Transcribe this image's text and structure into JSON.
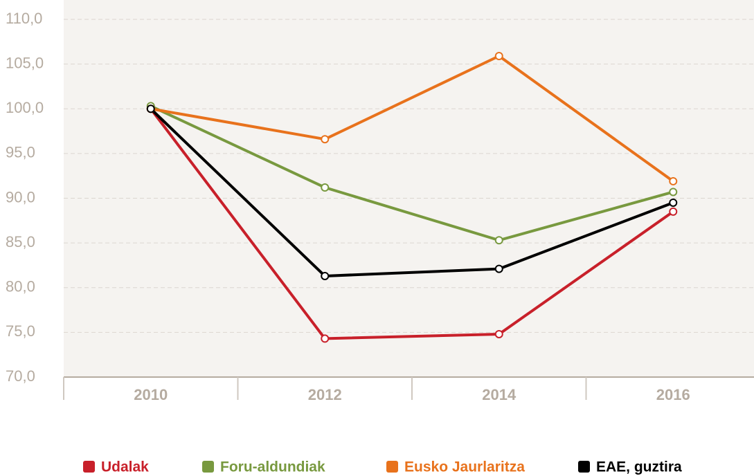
{
  "chart_data": {
    "type": "line",
    "categories": [
      "2010",
      "2012",
      "2014",
      "2016"
    ],
    "series": [
      {
        "name": "Udalak",
        "color": "#c8202a",
        "values": [
          100,
          74.3,
          74.8,
          88.5
        ]
      },
      {
        "name": "Foru-aldundiak",
        "color": "#78993f",
        "values": [
          100.3,
          91.2,
          85.3,
          90.7
        ]
      },
      {
        "name": "Eusko Jaurlaritza",
        "color": "#e8721c",
        "values": [
          100,
          96.6,
          105.9,
          91.9
        ]
      },
      {
        "name": "EAE, guztira",
        "color": "#000000",
        "values": [
          100,
          81.3,
          82.1,
          89.5
        ]
      }
    ],
    "ylim": [
      70,
      110
    ],
    "yticks": [
      {
        "value": 70,
        "label": "70,0"
      },
      {
        "value": 75,
        "label": "75,0"
      },
      {
        "value": 80,
        "label": "80,0"
      },
      {
        "value": 85,
        "label": "85,0"
      },
      {
        "value": 90,
        "label": "90,0"
      },
      {
        "value": 95,
        "label": "95,0"
      },
      {
        "value": 100,
        "label": "100,0"
      },
      {
        "value": 105,
        "label": "105,0"
      },
      {
        "value": 110,
        "label": "110,0"
      }
    ],
    "grid": true,
    "legend": "bottom"
  }
}
